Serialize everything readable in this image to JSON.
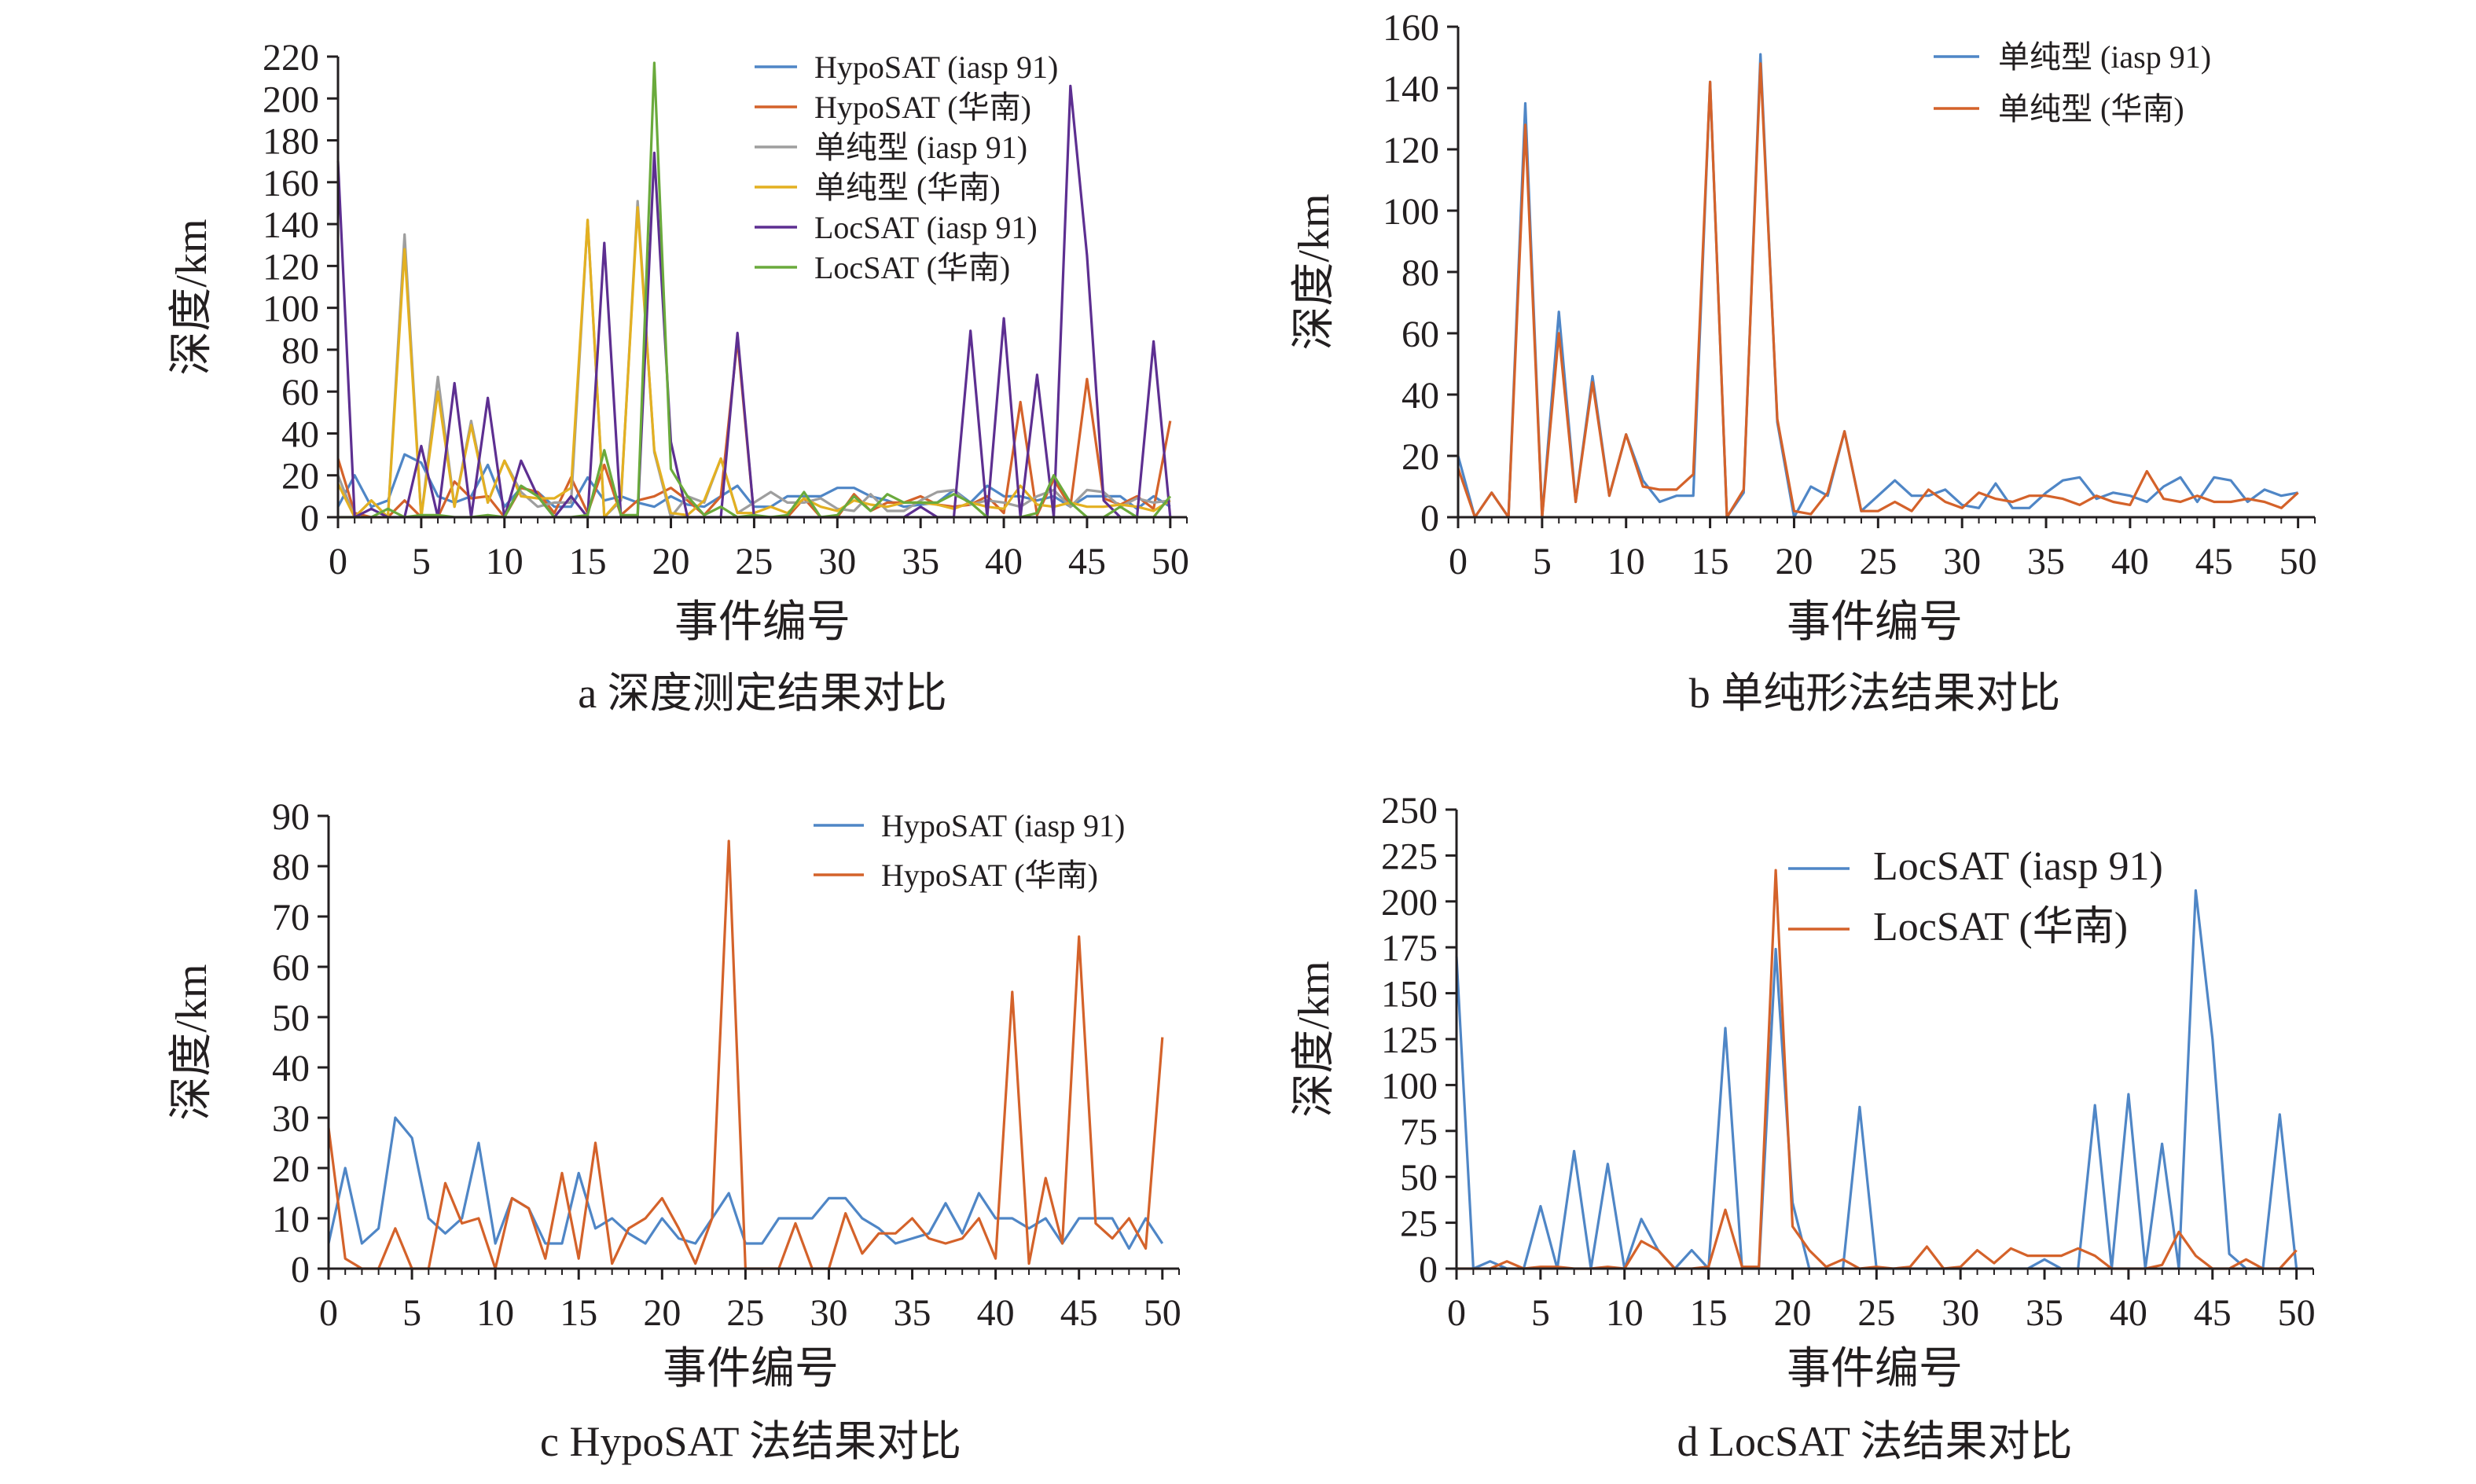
{
  "colors": {
    "blue": "#4f86c6",
    "orange": "#d4622a",
    "gray": "#9e9e9e",
    "yellow": "#e3b021",
    "purple": "#5d2f91",
    "green": "#6aaa3c",
    "axis": "#231f20"
  },
  "chart_data": [
    {
      "id": "a",
      "type": "line",
      "caption": "a 深度测定结果对比",
      "xlabel": "事件编号",
      "ylabel": "深度/km",
      "xlim": [
        0,
        51
      ],
      "ylim": [
        0,
        220
      ],
      "x_ticks": [
        0,
        5,
        10,
        15,
        20,
        25,
        30,
        35,
        40,
        45,
        50
      ],
      "y_ticks": [
        0,
        20,
        40,
        60,
        80,
        100,
        120,
        140,
        160,
        180,
        200,
        220
      ],
      "legend": "top-right",
      "series": [
        {
          "name": "HypoSAT (iasp 91)",
          "color": "blue",
          "values": [
            5,
            20,
            5,
            8,
            30,
            26,
            10,
            7,
            10,
            25,
            5,
            14,
            12,
            5,
            5,
            19,
            8,
            10,
            7,
            5,
            10,
            6,
            5,
            10,
            15,
            5,
            5,
            10,
            10,
            10,
            14,
            14,
            10,
            8,
            5,
            6,
            7,
            13,
            7,
            15,
            10,
            10,
            8,
            10,
            5,
            10,
            10,
            10,
            4,
            10,
            5
          ]
        },
        {
          "name": "HypoSAT (华南)",
          "color": "orange",
          "values": [
            28,
            2,
            0,
            0,
            8,
            0,
            0,
            17,
            9,
            10,
            0,
            14,
            12,
            2,
            19,
            2,
            25,
            1,
            8,
            10,
            14,
            8,
            1,
            10,
            85,
            0,
            0,
            0,
            9,
            0,
            0,
            11,
            3,
            7,
            7,
            10,
            6,
            5,
            6,
            10,
            2,
            55,
            1,
            18,
            5,
            66,
            9,
            6,
            10,
            4,
            46
          ]
        },
        {
          "name": "单纯型 (iasp 91)",
          "color": "gray",
          "values": [
            20,
            0,
            8,
            0,
            135,
            0,
            67,
            5,
            46,
            7,
            27,
            12,
            5,
            7,
            7,
            142,
            0,
            8,
            151,
            31,
            0,
            10,
            7,
            28,
            2,
            7,
            12,
            7,
            7,
            9,
            4,
            3,
            11,
            3,
            3,
            8,
            12,
            13,
            6,
            8,
            7,
            5,
            10,
            13,
            5,
            13,
            12,
            5,
            9,
            7,
            8
          ]
        },
        {
          "name": "单纯型 (华南)",
          "color": "yellow",
          "values": [
            16,
            0,
            8,
            0,
            128,
            0,
            60,
            5,
            44,
            7,
            27,
            10,
            9,
            9,
            14,
            142,
            0,
            9,
            148,
            32,
            2,
            1,
            8,
            28,
            2,
            2,
            5,
            2,
            9,
            5,
            3,
            8,
            6,
            5,
            7,
            7,
            6,
            4,
            7,
            5,
            4,
            15,
            6,
            5,
            7,
            5,
            5,
            6,
            5,
            3,
            8
          ]
        },
        {
          "name": "LocSAT (iasp 91)",
          "color": "purple",
          "values": [
            170,
            0,
            4,
            0,
            0,
            34,
            0,
            64,
            0,
            57,
            0,
            27,
            10,
            0,
            10,
            0,
            131,
            0,
            0,
            174,
            36,
            0,
            0,
            0,
            88,
            0,
            0,
            0,
            0,
            0,
            0,
            0,
            0,
            0,
            0,
            5,
            0,
            0,
            89,
            0,
            95,
            0,
            68,
            0,
            206,
            125,
            8,
            0,
            0,
            84,
            0
          ]
        },
        {
          "name": "LocSAT (华南)",
          "color": "green",
          "values": [
            0,
            0,
            0,
            4,
            0,
            1,
            1,
            0,
            0,
            1,
            0,
            15,
            10,
            0,
            0,
            1,
            32,
            1,
            1,
            217,
            23,
            10,
            1,
            5,
            0,
            1,
            0,
            1,
            12,
            0,
            1,
            10,
            3,
            11,
            7,
            7,
            7,
            11,
            7,
            0,
            0,
            0,
            2,
            20,
            7,
            0,
            0,
            5,
            0,
            0,
            10
          ]
        }
      ]
    },
    {
      "id": "b",
      "type": "line",
      "caption": "b 单纯形法结果对比",
      "xlabel": "事件编号",
      "ylabel": "深度/km",
      "xlim": [
        0,
        51
      ],
      "ylim": [
        0,
        160
      ],
      "x_ticks": [
        0,
        5,
        10,
        15,
        20,
        25,
        30,
        35,
        40,
        45,
        50
      ],
      "y_ticks": [
        0,
        20,
        40,
        60,
        80,
        100,
        120,
        140,
        160
      ],
      "legend": "top-right",
      "series": [
        {
          "name": "单纯型 (iasp 91)",
          "color": "blue",
          "values": [
            20,
            0,
            8,
            0,
            135,
            0,
            67,
            5,
            46,
            7,
            27,
            12,
            5,
            7,
            7,
            142,
            0,
            8,
            151,
            31,
            0,
            10,
            7,
            28,
            2,
            7,
            12,
            7,
            7,
            9,
            4,
            3,
            11,
            3,
            3,
            8,
            12,
            13,
            6,
            8,
            7,
            5,
            10,
            13,
            5,
            13,
            12,
            5,
            9,
            7,
            8
          ]
        },
        {
          "name": "单纯型 (华南)",
          "color": "orange",
          "values": [
            16,
            0,
            8,
            0,
            128,
            0,
            60,
            5,
            44,
            7,
            27,
            10,
            9,
            9,
            14,
            142,
            0,
            9,
            148,
            32,
            2,
            1,
            8,
            28,
            2,
            2,
            5,
            2,
            9,
            5,
            3,
            8,
            6,
            5,
            7,
            7,
            6,
            4,
            7,
            5,
            4,
            15,
            6,
            5,
            7,
            5,
            5,
            6,
            5,
            3,
            8
          ]
        }
      ]
    },
    {
      "id": "c",
      "type": "line",
      "caption": "c HypoSAT 法结果对比",
      "xlabel": "事件编号",
      "ylabel": "深度/km",
      "xlim": [
        0,
        51
      ],
      "ylim": [
        0,
        90
      ],
      "x_ticks": [
        0,
        5,
        10,
        15,
        20,
        25,
        30,
        35,
        40,
        45,
        50
      ],
      "y_ticks": [
        0,
        10,
        20,
        30,
        40,
        50,
        60,
        70,
        80,
        90
      ],
      "legend": "top-right",
      "series": [
        {
          "name": "HypoSAT (iasp 91)",
          "color": "blue",
          "values": [
            5,
            20,
            5,
            8,
            30,
            26,
            10,
            7,
            10,
            25,
            5,
            14,
            12,
            5,
            5,
            19,
            8,
            10,
            7,
            5,
            10,
            6,
            5,
            10,
            15,
            5,
            5,
            10,
            10,
            10,
            14,
            14,
            10,
            8,
            5,
            6,
            7,
            13,
            7,
            15,
            10,
            10,
            8,
            10,
            5,
            10,
            10,
            10,
            4,
            10,
            5
          ]
        },
        {
          "name": "HypoSAT (华南)",
          "color": "orange",
          "values": [
            28,
            2,
            0,
            0,
            8,
            0,
            0,
            17,
            9,
            10,
            0,
            14,
            12,
            2,
            19,
            2,
            25,
            1,
            8,
            10,
            14,
            8,
            1,
            10,
            85,
            0,
            0,
            0,
            9,
            0,
            0,
            11,
            3,
            7,
            7,
            10,
            6,
            5,
            6,
            10,
            2,
            55,
            1,
            18,
            5,
            66,
            9,
            6,
            10,
            4,
            46
          ]
        }
      ]
    },
    {
      "id": "d",
      "type": "line",
      "caption": "d LocSAT 法结果对比",
      "xlabel": "事件编号",
      "ylabel": "深度/km",
      "xlim": [
        0,
        51
      ],
      "ylim": [
        0,
        250
      ],
      "x_ticks": [
        0,
        5,
        10,
        15,
        20,
        25,
        30,
        35,
        40,
        45,
        50
      ],
      "y_ticks": [
        0,
        25,
        50,
        75,
        100,
        125,
        150,
        175,
        200,
        225,
        250
      ],
      "legend": "top-right",
      "series": [
        {
          "name": "LocSAT (iasp 91)",
          "color": "blue",
          "values": [
            170,
            0,
            4,
            0,
            0,
            34,
            0,
            64,
            0,
            57,
            0,
            27,
            10,
            0,
            10,
            0,
            131,
            0,
            0,
            174,
            36,
            0,
            0,
            0,
            88,
            0,
            0,
            0,
            0,
            0,
            0,
            0,
            0,
            0,
            0,
            5,
            0,
            0,
            89,
            0,
            95,
            0,
            68,
            0,
            206,
            125,
            8,
            0,
            0,
            84,
            0
          ]
        },
        {
          "name": "LocSAT (华南)",
          "color": "orange",
          "values": [
            0,
            0,
            0,
            4,
            0,
            1,
            1,
            0,
            0,
            1,
            0,
            15,
            10,
            0,
            0,
            1,
            32,
            1,
            1,
            217,
            23,
            10,
            1,
            5,
            0,
            1,
            0,
            1,
            12,
            0,
            1,
            10,
            3,
            11,
            7,
            7,
            7,
            11,
            7,
            0,
            0,
            0,
            2,
            20,
            7,
            0,
            0,
            5,
            0,
            0,
            10
          ]
        }
      ]
    }
  ]
}
